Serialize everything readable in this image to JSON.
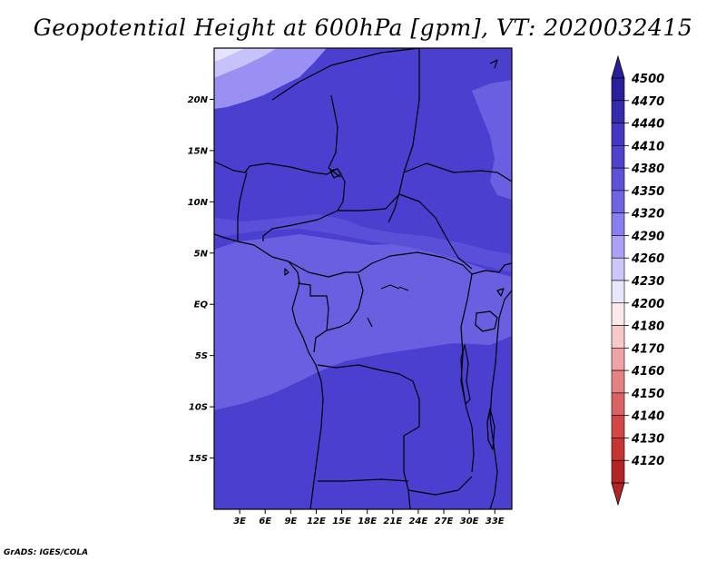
{
  "title": "Geopotential Height at 600hPa [gpm], VT: 2020032415",
  "credit": "GrADS: IGES/COLA",
  "map": {
    "lon_range": [
      0,
      35
    ],
    "lat_range": [
      -20,
      25
    ],
    "lat_ticks": [
      {
        "value": 20,
        "label": "20N"
      },
      {
        "value": 15,
        "label": "15N"
      },
      {
        "value": 10,
        "label": "10N"
      },
      {
        "value": 5,
        "label": "5N"
      },
      {
        "value": 0,
        "label": "EQ"
      },
      {
        "value": -5,
        "label": "5S"
      },
      {
        "value": -10,
        "label": "10S"
      },
      {
        "value": -15,
        "label": "15S"
      }
    ],
    "lon_ticks": [
      {
        "value": 3,
        "label": "3E"
      },
      {
        "value": 6,
        "label": "6E"
      },
      {
        "value": 9,
        "label": "9E"
      },
      {
        "value": 12,
        "label": "12E"
      },
      {
        "value": 15,
        "label": "15E"
      },
      {
        "value": 18,
        "label": "18E"
      },
      {
        "value": 21,
        "label": "21E"
      },
      {
        "value": 24,
        "label": "24E"
      },
      {
        "value": 27,
        "label": "27E"
      },
      {
        "value": 30,
        "label": "30E"
      },
      {
        "value": 33,
        "label": "33E"
      }
    ],
    "field_colors": {
      "bg": "#4a3fcf",
      "mid": "#6a5fe0",
      "band": "#5a4fd8",
      "light1": "#9a90f4",
      "light2": "#c8c2fa",
      "light3": "#e6e3ff"
    }
  },
  "legend": {
    "levels": [
      {
        "label": "4500",
        "color": "#2a1f9a"
      },
      {
        "label": "4470",
        "color": "#3629ad"
      },
      {
        "label": "4440",
        "color": "#4336c2"
      },
      {
        "label": "4410",
        "color": "#4f43d0"
      },
      {
        "label": "4380",
        "color": "#5d52d9"
      },
      {
        "label": "4350",
        "color": "#6e64e3"
      },
      {
        "label": "4320",
        "color": "#877ef0"
      },
      {
        "label": "4290",
        "color": "#a8a1f6"
      },
      {
        "label": "4260",
        "color": "#cbc7fa"
      },
      {
        "label": "4230",
        "color": "#e8e6fd"
      },
      {
        "label": "4200",
        "color": "#fbe9ea"
      },
      {
        "label": "4180",
        "color": "#f7c8c8"
      },
      {
        "label": "4170",
        "color": "#eea4a4"
      },
      {
        "label": "4160",
        "color": "#e48282"
      },
      {
        "label": "4150",
        "color": "#db6262"
      },
      {
        "label": "4140",
        "color": "#d24646"
      },
      {
        "label": "4130",
        "color": "#c63434"
      },
      {
        "label": "4120",
        "color": "#b52424"
      }
    ]
  }
}
